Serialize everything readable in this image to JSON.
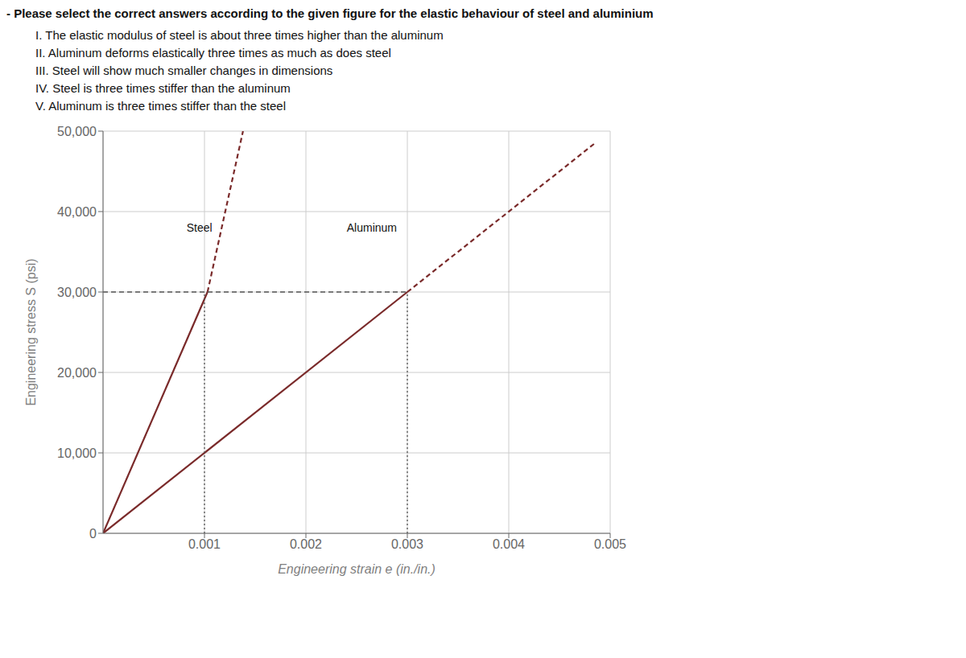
{
  "chart_data": {
    "type": "line",
    "title": "- Please select the correct answers according to the given figure for the elastic behaviour of steel and aluminium",
    "subtitle": [
      "I. The elastic modulus of steel is about three times higher than the aluminum",
      "II. Aluminum deforms elastically three times as much as does steel",
      "III. Steel will show much smaller changes in dimensions",
      "IV. Steel is three times stiffer than the aluminum",
      "V. Aluminum is three times stiffer than the steel"
    ],
    "x_label": "Engineering strain e (in./in.)",
    "y_label": "Engineering stress S (psi)",
    "xlim": [
      0,
      0.005
    ],
    "ylim": [
      0,
      50000
    ],
    "xticks": [
      0.001,
      0.002,
      0.003,
      0.004,
      0.005
    ],
    "yticks": [
      0,
      {
        "value": 10000,
        "label": "10,000"
      },
      {
        "value": 20000,
        "label": "20,000"
      },
      {
        "value": 30000,
        "label": "30,000"
      },
      {
        "value": 40000,
        "label": "40,000"
      },
      {
        "value": 50000,
        "label": "50,000"
      }
    ],
    "grid": true,
    "series": [
      {
        "x": [
          0,
          0.00103
        ],
        "values": [
          0,
          30000
        ],
        "color": "#7a2a2a",
        "line_style": "solid"
      },
      {
        "x": [
          0.00103,
          0.00138
        ],
        "values": [
          30000,
          50000
        ],
        "color": "#7a2a2a",
        "line_style": "dashed"
      },
      {
        "x": [
          0,
          0.003
        ],
        "values": [
          0,
          30000
        ],
        "color": "#7a2a2a",
        "line_style": "solid"
      },
      {
        "x": [
          0.003,
          0.00485
        ],
        "values": [
          30000,
          48500
        ],
        "color": "#7a2a2a",
        "line_style": "dashed"
      },
      {
        "x": [
          0,
          0.003
        ],
        "values": [
          30000,
          30000
        ],
        "color": "#555555",
        "line_style": "dashed"
      },
      {
        "x": [
          0.001,
          0.001
        ],
        "values": [
          0,
          30000
        ],
        "color": "#555555",
        "line_style": "dotted"
      },
      {
        "x": [
          0.003,
          0.003
        ],
        "values": [
          0,
          30000
        ],
        "color": "#555555",
        "line_style": "dotted"
      }
    ],
    "annotations": [
      {
        "text": "Steel",
        "x": 0.00095,
        "y": 37000
      },
      {
        "text": "Aluminum",
        "x": 0.00265,
        "y": 37000
      }
    ]
  }
}
